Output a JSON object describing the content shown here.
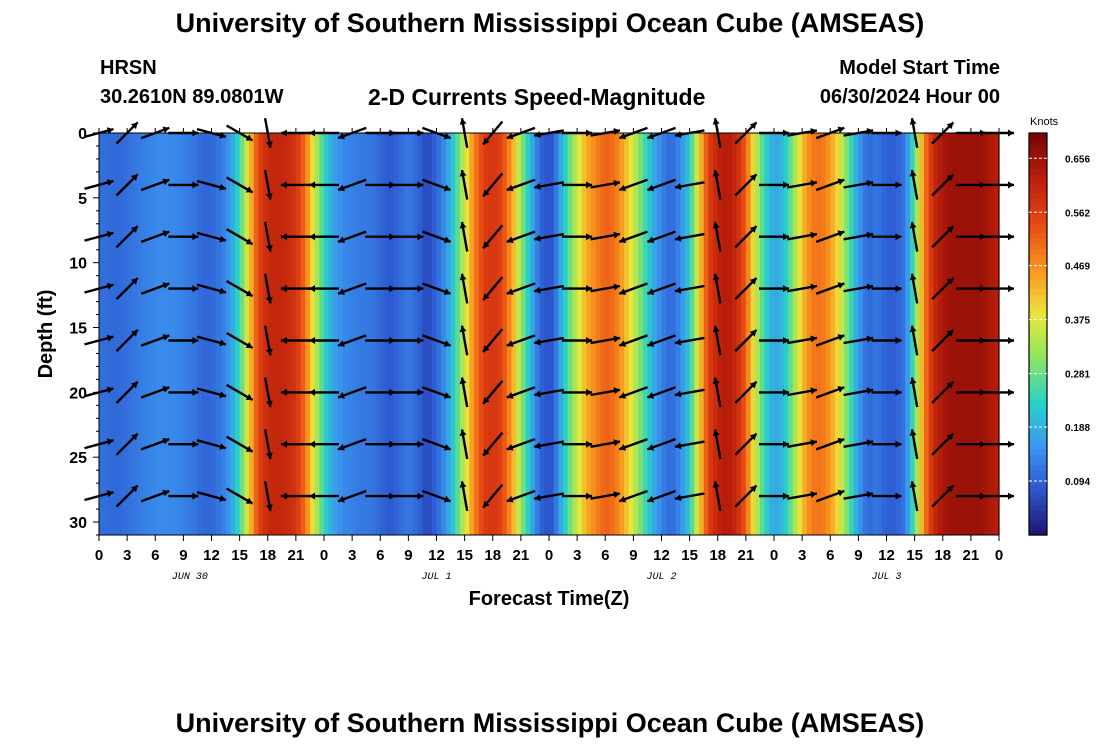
{
  "header": {
    "title": "University of Southern Mississippi Ocean Cube (AMSEAS)",
    "station": "HRSN",
    "coords": "30.2610N  89.0801W",
    "plot_title": "2-D Currents Speed-Magnitude",
    "start_label": "Model Start Time",
    "start_value": "06/30/2024 Hour 00"
  },
  "footer": {
    "title": "University of Southern Mississippi Ocean Cube (AMSEAS)"
  },
  "chart_data": {
    "type": "heatmap",
    "title": "2-D Currents Speed-Magnitude",
    "xlabel": "Forecast Time(Z)",
    "ylabel": "Depth (ft)",
    "x_range_hours": [
      0,
      96
    ],
    "ylim": [
      0,
      31
    ],
    "x_tick_labels": [
      "0",
      "3",
      "6",
      "9",
      "12",
      "15",
      "18",
      "21",
      "0",
      "3",
      "6",
      "9",
      "12",
      "15",
      "18",
      "21",
      "0",
      "3",
      "6",
      "9",
      "12",
      "15",
      "18",
      "21",
      "0",
      "3",
      "6",
      "9",
      "12",
      "15",
      "18",
      "21",
      "0"
    ],
    "y_ticks": [
      0,
      5,
      10,
      15,
      20,
      25,
      30
    ],
    "date_labels": [
      {
        "label": "JUN 30",
        "hour": 9.7
      },
      {
        "label": "JUL 1",
        "hour": 36
      },
      {
        "label": "JUL 2",
        "hour": 60
      },
      {
        "label": "JUL 3",
        "hour": 84
      }
    ],
    "colorbar": {
      "unit": "Knots",
      "min": 0.0,
      "max": 0.7,
      "ticks": [
        0.094,
        0.188,
        0.281,
        0.375,
        0.469,
        0.562,
        0.656
      ],
      "tick_labels": [
        "0.094",
        "0.188",
        "0.281",
        "0.375",
        "0.469",
        "0.562",
        "0.656"
      ]
    },
    "speed_profile_hours": [
      0,
      2,
      4,
      6,
      8,
      10,
      11,
      12,
      13,
      14,
      15,
      15.5,
      16,
      16.5,
      17,
      18,
      19,
      20,
      21,
      22,
      23,
      24,
      25,
      26,
      27,
      28,
      29,
      30,
      31,
      32,
      33,
      34,
      35,
      36,
      37,
      38,
      39,
      40,
      41,
      42,
      43,
      44,
      45,
      46,
      47,
      48,
      48.5,
      49,
      50,
      51,
      52,
      53,
      54,
      55,
      56,
      57,
      58,
      59,
      60,
      61,
      62,
      63,
      64,
      65,
      66,
      67,
      68,
      69,
      70,
      71,
      72,
      73,
      74,
      75,
      76,
      77,
      78,
      79,
      80,
      81,
      82,
      83,
      84,
      85,
      86,
      87,
      88,
      89,
      90,
      91,
      92,
      93,
      94,
      95,
      96
    ],
    "speed_profile_knots": [
      0.11,
      0.1,
      0.12,
      0.14,
      0.14,
      0.12,
      0.1,
      0.1,
      0.12,
      0.16,
      0.25,
      0.32,
      0.4,
      0.48,
      0.55,
      0.6,
      0.61,
      0.6,
      0.58,
      0.5,
      0.36,
      0.24,
      0.17,
      0.14,
      0.13,
      0.12,
      0.12,
      0.1,
      0.08,
      0.1,
      0.12,
      0.1,
      0.06,
      0.1,
      0.15,
      0.24,
      0.36,
      0.48,
      0.56,
      0.58,
      0.55,
      0.46,
      0.32,
      0.2,
      0.1,
      0.07,
      0.09,
      0.15,
      0.26,
      0.36,
      0.44,
      0.48,
      0.52,
      0.5,
      0.44,
      0.36,
      0.27,
      0.19,
      0.13,
      0.1,
      0.14,
      0.22,
      0.4,
      0.56,
      0.61,
      0.63,
      0.6,
      0.52,
      0.36,
      0.24,
      0.17,
      0.2,
      0.3,
      0.42,
      0.49,
      0.5,
      0.46,
      0.38,
      0.27,
      0.16,
      0.1,
      0.12,
      0.09,
      0.09,
      0.12,
      0.28,
      0.48,
      0.6,
      0.64,
      0.66,
      0.66,
      0.66,
      0.66,
      0.64,
      0.62
    ],
    "vector_rows_depth_ft": [
      0,
      4,
      8,
      12,
      16,
      20,
      24,
      28
    ],
    "vector_cols_hours": [
      0,
      3,
      6,
      9,
      12,
      15,
      18,
      21,
      24,
      27,
      30,
      33,
      36,
      39,
      42,
      45,
      48,
      51,
      54,
      57,
      60,
      63,
      66,
      69,
      72,
      75,
      78,
      81,
      84,
      87,
      90,
      93,
      96
    ],
    "vector_directions_deg": [
      15,
      45,
      20,
      0,
      -15,
      -30,
      -80,
      180,
      180,
      200,
      0,
      0,
      -20,
      100,
      230,
      200,
      190,
      0,
      10,
      200,
      200,
      190,
      100,
      45,
      0,
      10,
      20,
      10,
      0,
      100,
      45,
      0,
      0
    ]
  }
}
